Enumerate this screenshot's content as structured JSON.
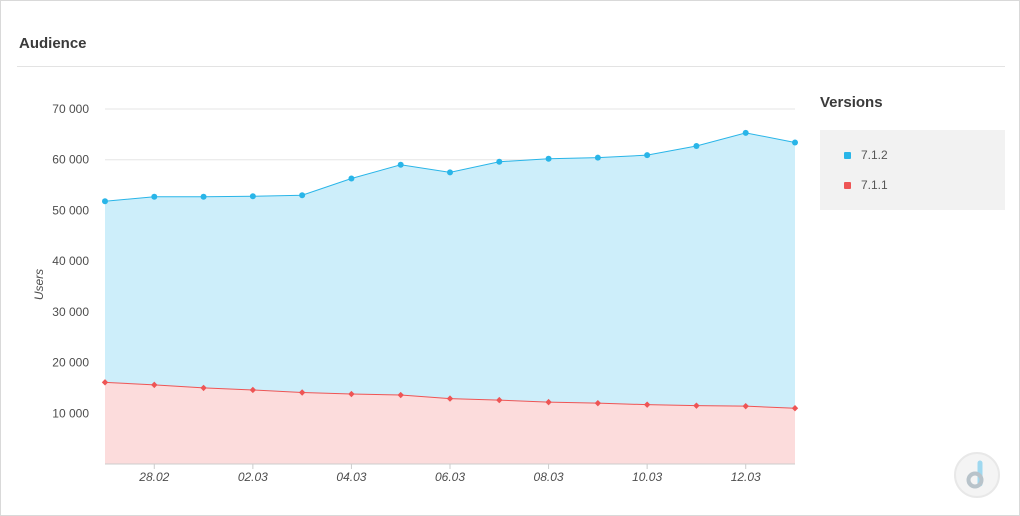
{
  "panel": {
    "title": "Audience"
  },
  "legend": {
    "title": "Versions",
    "items": [
      {
        "label": "7.1.2",
        "color": "#29b5e8"
      },
      {
        "label": "7.1.1",
        "color": "#ee5555"
      }
    ]
  },
  "logo": {
    "icon": "devtodev-logo-icon"
  },
  "chart_data": {
    "type": "area",
    "ylabel": "Users",
    "xlabel": "",
    "ylim": [
      0,
      70000
    ],
    "yticks": [
      10000,
      20000,
      30000,
      40000,
      50000,
      60000,
      70000
    ],
    "ytick_labels": [
      "10 000",
      "20 000",
      "30 000",
      "40 000",
      "50 000",
      "60 000",
      "70 000"
    ],
    "x": [
      "27.02",
      "28.02",
      "01.03",
      "02.03",
      "03.03",
      "04.03",
      "05.03",
      "06.03",
      "07.03",
      "08.03",
      "09.03",
      "10.03",
      "11.03",
      "12.03",
      "13.03"
    ],
    "xtick_labels": [
      "28.02",
      "02.03",
      "04.03",
      "06.03",
      "08.03",
      "10.03",
      "12.03"
    ],
    "grid": true,
    "legend_position": "right",
    "series": [
      {
        "name": "7.1.2",
        "color": "#29b5e8",
        "fill": "#cdeefa",
        "marker": "circle",
        "values": [
          51800,
          52700,
          52700,
          52800,
          53000,
          56300,
          59000,
          57500,
          59600,
          60200,
          60400,
          60900,
          62700,
          65300,
          63400
        ]
      },
      {
        "name": "7.1.1",
        "color": "#ee5555",
        "fill": "#fcdcdc",
        "marker": "diamond",
        "values": [
          16100,
          15600,
          15000,
          14600,
          14100,
          13800,
          13600,
          12900,
          12600,
          12200,
          12000,
          11700,
          11500,
          11400,
          11000
        ]
      }
    ]
  }
}
